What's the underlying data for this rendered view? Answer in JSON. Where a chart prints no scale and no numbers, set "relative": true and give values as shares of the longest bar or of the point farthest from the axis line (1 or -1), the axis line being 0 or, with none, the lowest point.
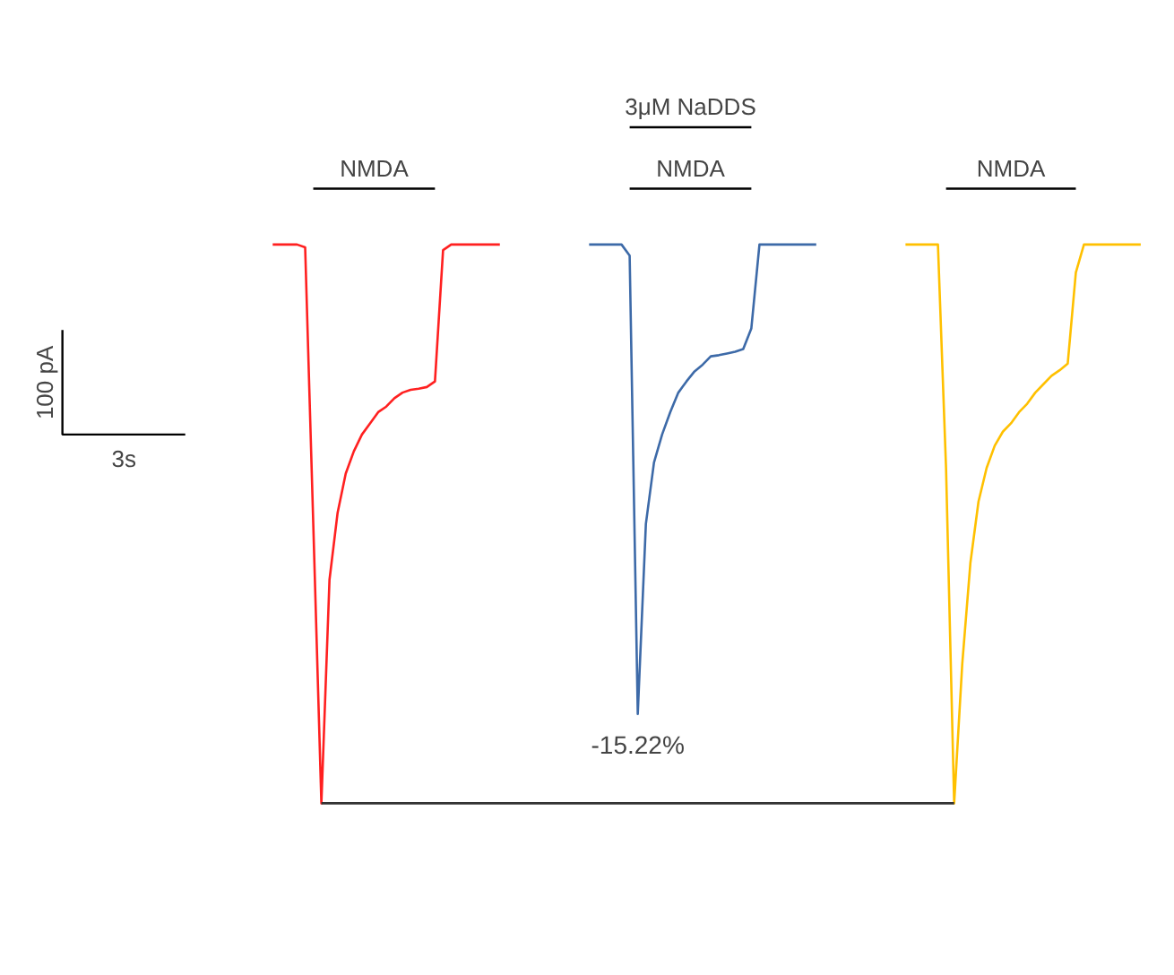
{
  "chart_data": {
    "type": "line",
    "relative": true,
    "tick_labels": false,
    "categories": [
      null,
      null,
      null,
      null,
      null,
      null,
      null,
      null,
      null,
      null,
      null,
      null,
      null,
      null,
      null,
      null,
      null,
      null,
      null,
      null,
      null,
      null,
      null,
      null,
      null,
      null,
      null,
      null,
      null,
      null,
      null,
      null,
      null,
      null,
      null,
      null,
      null,
      null,
      null,
      null,
      null,
      null,
      null,
      null,
      null,
      null,
      null,
      null,
      null,
      null,
      null,
      null,
      null,
      null,
      null,
      null,
      null,
      null,
      null,
      null,
      null,
      null,
      null,
      null,
      null,
      null,
      null,
      null,
      null,
      null,
      null,
      null,
      null,
      null,
      null,
      null,
      null,
      null,
      null,
      null,
      null,
      null,
      null,
      null,
      null,
      null,
      null,
      null,
      null,
      null,
      null,
      null,
      null,
      null,
      null,
      null,
      null,
      null,
      null,
      null,
      null,
      null,
      null,
      null,
      null,
      null,
      null,
      null
    ],
    "series": [
      {
        "color": "#ff2020",
        "values": [
          1,
          1,
          1,
          1,
          0.995,
          0.5,
          0,
          0.4,
          0.52,
          0.59,
          0.63,
          0.66,
          0.68,
          0.7,
          0.71,
          0.725,
          0.735,
          0.74,
          0.742,
          0.745,
          0.755,
          0.99,
          1,
          1,
          1,
          1,
          1,
          1,
          1,
          null,
          null,
          null,
          null,
          null,
          null,
          null,
          null,
          null,
          null,
          null,
          null,
          null,
          null,
          null,
          null,
          null,
          null,
          null,
          null,
          null,
          null,
          null,
          null,
          null,
          null,
          null,
          null,
          null,
          null,
          null,
          null,
          null,
          null,
          null,
          null,
          null,
          null,
          null,
          null,
          null,
          null,
          null,
          null,
          null,
          null,
          null,
          null,
          null,
          null,
          null,
          null,
          null,
          null,
          null,
          null,
          null,
          null,
          null,
          null,
          null,
          null,
          null,
          null,
          null,
          null,
          null,
          null,
          null,
          null,
          null,
          null,
          null,
          null,
          null,
          null,
          null,
          null,
          null
        ]
      },
      {
        "color": "#3d6aa8",
        "values": [
          null,
          null,
          null,
          null,
          null,
          null,
          null,
          null,
          null,
          null,
          null,
          null,
          null,
          null,
          null,
          null,
          null,
          null,
          null,
          null,
          null,
          null,
          null,
          null,
          null,
          null,
          null,
          null,
          null,
          null,
          null,
          null,
          null,
          null,
          null,
          null,
          null,
          null,
          null,
          1,
          1,
          1,
          1,
          1,
          0.98,
          0.16,
          0.5,
          0.61,
          0.66,
          0.7,
          0.735,
          0.755,
          0.773,
          0.785,
          0.8,
          0.802,
          0.805,
          0.808,
          0.813,
          0.85,
          1,
          1,
          1,
          1,
          1,
          1,
          1,
          1,
          null,
          null,
          null,
          null,
          null,
          null,
          null,
          null,
          null,
          null,
          null,
          null,
          null,
          null,
          null,
          null,
          null,
          null,
          null,
          null,
          null,
          null,
          null,
          null,
          null,
          null,
          null,
          null,
          null,
          null,
          null,
          null,
          null,
          null,
          null,
          null,
          null,
          null,
          null,
          null
        ]
      },
      {
        "color": "#ffc000",
        "values": [
          null,
          null,
          null,
          null,
          null,
          null,
          null,
          null,
          null,
          null,
          null,
          null,
          null,
          null,
          null,
          null,
          null,
          null,
          null,
          null,
          null,
          null,
          null,
          null,
          null,
          null,
          null,
          null,
          null,
          null,
          null,
          null,
          null,
          null,
          null,
          null,
          null,
          null,
          null,
          null,
          null,
          null,
          null,
          null,
          null,
          null,
          null,
          null,
          null,
          null,
          null,
          null,
          null,
          null,
          null,
          null,
          null,
          null,
          null,
          null,
          null,
          null,
          null,
          null,
          null,
          null,
          null,
          null,
          null,
          null,
          null,
          null,
          null,
          null,
          null,
          null,
          null,
          null,
          1,
          1,
          1,
          1,
          1,
          0.6,
          0,
          0.25,
          0.43,
          0.54,
          0.6,
          0.64,
          0.665,
          0.68,
          0.7,
          0.715,
          0.735,
          0.75,
          0.765,
          0.775,
          0.787,
          0.95,
          1,
          1,
          1,
          1,
          1,
          1,
          1,
          1
        ]
      },
      {
        "color": "#333333",
        "values": [
          null,
          null,
          null,
          null,
          null,
          null,
          0,
          0,
          0,
          0,
          0,
          0,
          0,
          0,
          0,
          0,
          0,
          0,
          0,
          0,
          0,
          0,
          0,
          0,
          0,
          0,
          0,
          0,
          0,
          0,
          0,
          0,
          0,
          0,
          0,
          0,
          0,
          0,
          0,
          0,
          0,
          0,
          0,
          0,
          0,
          0,
          0,
          0,
          0,
          0,
          0,
          0,
          0,
          0,
          0,
          0,
          0,
          0,
          0,
          0,
          0,
          0,
          0,
          0,
          0,
          0,
          0,
          0,
          0,
          0,
          0,
          0,
          0,
          0,
          0,
          0,
          0,
          0,
          0,
          0,
          0,
          0,
          0,
          0,
          0,
          null,
          null,
          null,
          null,
          null,
          null,
          null,
          null,
          null,
          null,
          null,
          null,
          null,
          null,
          null,
          null,
          null,
          null,
          null,
          null,
          null,
          null,
          null
        ]
      }
    ],
    "annotations": [
      "100 pA",
      "3s",
      "NMDA",
      "NMDA",
      "3μM NaDDS",
      "NMDA",
      "-15.22%"
    ]
  }
}
